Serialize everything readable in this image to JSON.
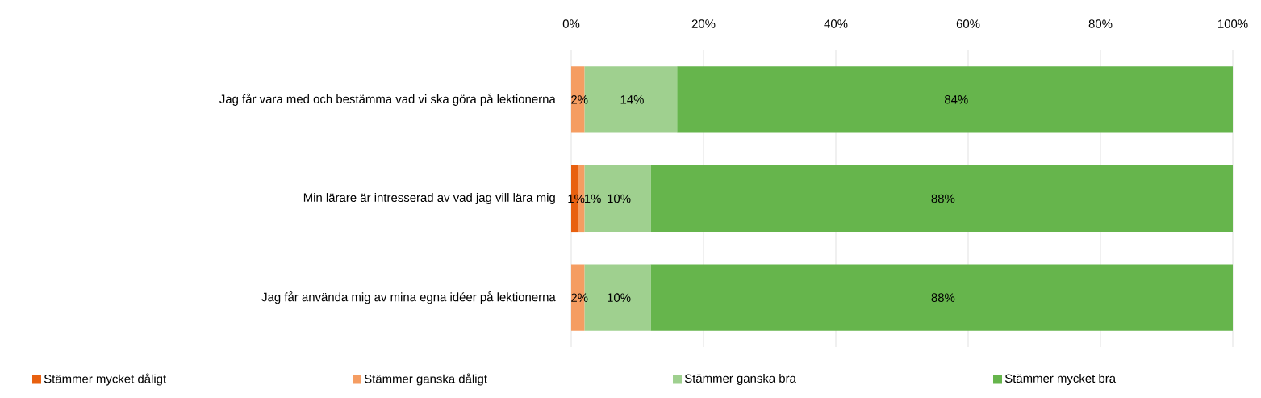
{
  "chart_data": {
    "type": "bar",
    "orientation": "horizontal",
    "stacked": true,
    "categories": [
      "Jag får vara med och bestämma vad vi ska göra på lektionerna",
      "Min lärare är intresserad av vad jag vill lära mig",
      "Jag får använda mig av mina egna idéer på lektionerna"
    ],
    "series": [
      {
        "name": "Stämmer mycket dåligt",
        "color": "#e8600f",
        "values": [
          0,
          1,
          0
        ],
        "value_labels": [
          null,
          "1%",
          null
        ]
      },
      {
        "name": "Stämmer ganska dåligt",
        "color": "#f59d62",
        "values": [
          2,
          1,
          2
        ],
        "value_labels": [
          "2%",
          "1%",
          "2%"
        ]
      },
      {
        "name": "Stämmer ganska bra",
        "color": "#9fd08f",
        "values": [
          14,
          10,
          10
        ],
        "value_labels": [
          "14%",
          "10%",
          "10%"
        ]
      },
      {
        "name": "Stämmer mycket bra",
        "color": "#66b54c",
        "values": [
          84,
          88,
          88
        ],
        "value_labels": [
          "84%",
          "88%",
          "88%"
        ]
      }
    ],
    "xlim": [
      0,
      100
    ],
    "xticks": [
      {
        "value": 0,
        "label": "0%"
      },
      {
        "value": 20,
        "label": "20%"
      },
      {
        "value": 40,
        "label": "40%"
      },
      {
        "value": 60,
        "label": "60%"
      },
      {
        "value": 80,
        "label": "80%"
      },
      {
        "value": 100,
        "label": "100%"
      }
    ],
    "grid": "x",
    "legend": "bottom"
  }
}
